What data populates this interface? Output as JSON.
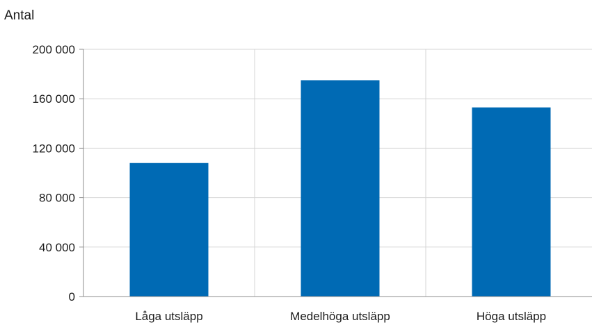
{
  "chart_data": {
    "type": "bar",
    "title": "",
    "ylabel": "Antal",
    "xlabel": "",
    "categories": [
      "Låga utsläpp",
      "Medelhöga utsläpp",
      "Höga utsläpp"
    ],
    "values": [
      108000,
      175000,
      153000
    ],
    "ylim": [
      0,
      200000
    ],
    "yticks": [
      0,
      40000,
      80000,
      120000,
      160000,
      200000
    ],
    "ytick_labels": [
      "0",
      "40 000",
      "80 000",
      "120 000",
      "160 000",
      "200 000"
    ],
    "bar_color": "#006AB4",
    "grid": true,
    "legend": "none"
  }
}
